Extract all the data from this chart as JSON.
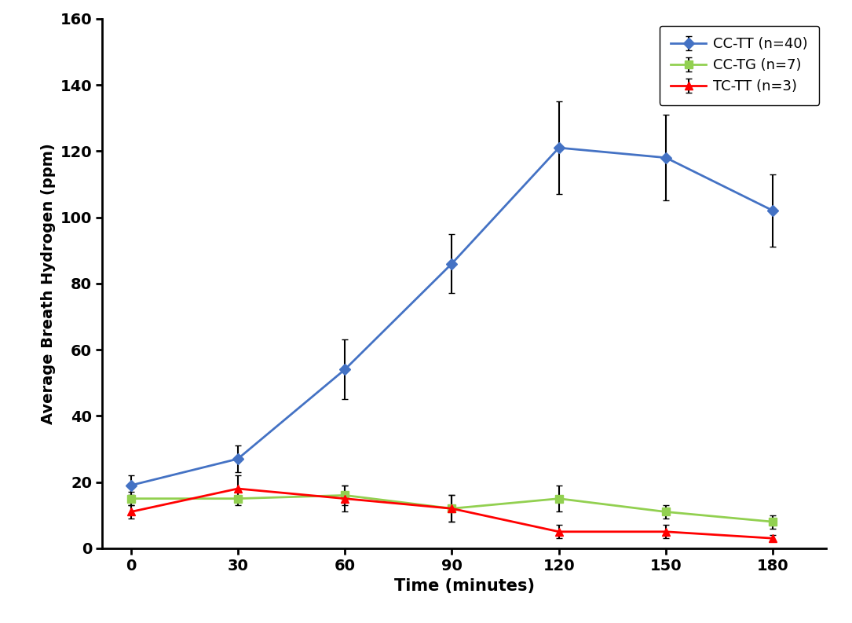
{
  "title": "",
  "xlabel": "Time (minutes)",
  "ylabel": "Average Breath Hydrogen (ppm)",
  "x": [
    0,
    30,
    60,
    90,
    120,
    150,
    180
  ],
  "series": [
    {
      "label": "CC-TT (n=40)",
      "color": "#4472C4",
      "marker": "D",
      "markersize": 7,
      "values": [
        19,
        27,
        54,
        86,
        121,
        118,
        102
      ],
      "yerr": [
        3,
        4,
        9,
        9,
        14,
        13,
        11
      ]
    },
    {
      "label": "CC-TG (n=7)",
      "color": "#92D050",
      "marker": "s",
      "markersize": 7,
      "values": [
        15,
        15,
        16,
        12,
        15,
        11,
        8
      ],
      "yerr": [
        2,
        2,
        3,
        4,
        4,
        2,
        2
      ]
    },
    {
      "label": "TC-TT (n=3)",
      "color": "#FF0000",
      "marker": "^",
      "markersize": 7,
      "values": [
        11,
        18,
        15,
        12,
        5,
        5,
        3
      ],
      "yerr": [
        2,
        4,
        4,
        4,
        2,
        2,
        1
      ]
    }
  ],
  "xlim": [
    -8,
    195
  ],
  "ylim": [
    0,
    160
  ],
  "yticks": [
    0,
    20,
    40,
    60,
    80,
    100,
    120,
    140,
    160
  ],
  "xticks": [
    0,
    30,
    60,
    90,
    120,
    150,
    180
  ],
  "legend_loc": "upper right",
  "errorbar_color": "black",
  "errorbar_capsize": 3,
  "linewidth": 2.0,
  "xlabel_fontsize": 15,
  "ylabel_fontsize": 14,
  "tick_fontsize": 14,
  "legend_fontsize": 13
}
